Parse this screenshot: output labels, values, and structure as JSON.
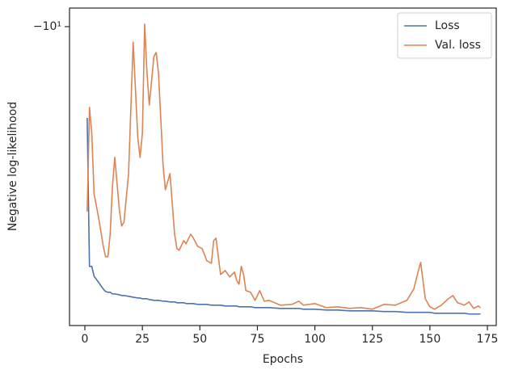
{
  "chart_data": {
    "type": "line",
    "xlabel": "Epochs",
    "ylabel": "Negative log-likelihood",
    "yscale": "symlog",
    "x": [
      1,
      2,
      3,
      4,
      6,
      8,
      9,
      10,
      11,
      12,
      13,
      15,
      16,
      17,
      19,
      21,
      23,
      24,
      25,
      26,
      27,
      28,
      30,
      31,
      32,
      34,
      35,
      37,
      39,
      40,
      41,
      43,
      44,
      46,
      47,
      49,
      51,
      53,
      55,
      56,
      57,
      59,
      61,
      63,
      65,
      66,
      67,
      68,
      69,
      70,
      72,
      74,
      76,
      78,
      80,
      85,
      90,
      93,
      95,
      100,
      105,
      110,
      115,
      120,
      125,
      130,
      135,
      140,
      143,
      145,
      146,
      148,
      150,
      152,
      155,
      158,
      160,
      162,
      165,
      167,
      169,
      171,
      172
    ],
    "series": [
      {
        "name": "Loss",
        "color": "#4c72b0",
        "values": [
          -15.07,
          -29.37,
          -29.37,
          -30.68,
          -31.57,
          -32.51,
          -32.87,
          -32.98,
          -32.98,
          -33.23,
          -33.23,
          -33.35,
          -33.47,
          -33.47,
          -33.59,
          -33.72,
          -33.84,
          -33.84,
          -33.96,
          -33.96,
          -33.96,
          -34.08,
          -34.2,
          -34.2,
          -34.2,
          -34.33,
          -34.33,
          -34.45,
          -34.45,
          -34.57,
          -34.57,
          -34.57,
          -34.7,
          -34.7,
          -34.7,
          -34.83,
          -34.83,
          -34.83,
          -34.95,
          -34.95,
          -34.95,
          -34.95,
          -35.08,
          -35.08,
          -35.08,
          -35.08,
          -35.21,
          -35.21,
          -35.21,
          -35.21,
          -35.21,
          -35.34,
          -35.34,
          -35.34,
          -35.34,
          -35.46,
          -35.46,
          -35.46,
          -35.59,
          -35.59,
          -35.72,
          -35.72,
          -35.85,
          -35.85,
          -35.85,
          -35.97,
          -35.97,
          -36.1,
          -36.1,
          -36.1,
          -36.1,
          -36.1,
          -36.1,
          -36.24,
          -36.24,
          -36.24,
          -36.24,
          -36.24,
          -36.24,
          -36.37,
          -36.37,
          -36.37,
          -36.37
        ]
      },
      {
        "name": "Val. loss",
        "color": "#dd8452",
        "values": [
          -22.95,
          -14.37,
          -16.14,
          -21.19,
          -23.63,
          -26.82,
          -28.12,
          -28.12,
          -25.41,
          -20.43,
          -17.99,
          -22.79,
          -24.5,
          -24.06,
          -19.35,
          -10.72,
          -16.44,
          -17.99,
          -16.14,
          -9.89,
          -12.3,
          -14.22,
          -11.44,
          -11.23,
          -12.3,
          -18.66,
          -20.81,
          -19.35,
          -25.41,
          -27.11,
          -27.31,
          -26.15,
          -26.53,
          -25.41,
          -25.77,
          -26.82,
          -27.11,
          -28.63,
          -28.95,
          -26.15,
          -25.87,
          -30.46,
          -29.91,
          -30.79,
          -30.13,
          -31.24,
          -31.81,
          -29.37,
          -30.46,
          -32.74,
          -32.98,
          -34.2,
          -32.74,
          -34.33,
          -34.2,
          -34.95,
          -34.83,
          -34.33,
          -34.95,
          -34.7,
          -35.34,
          -35.21,
          -35.46,
          -35.34,
          -35.59,
          -34.83,
          -34.95,
          -34.2,
          -32.51,
          -29.91,
          -28.84,
          -33.96,
          -35.21,
          -35.59,
          -34.95,
          -33.96,
          -33.47,
          -34.57,
          -34.95,
          -34.45,
          -35.46,
          -35.08,
          -35.34
        ]
      }
    ],
    "xlim": [
      -6.68,
      178.85
    ],
    "xticks": [
      0,
      25,
      50,
      75,
      100,
      125,
      150,
      175
    ],
    "ylim": [
      -38.3,
      -9.2
    ],
    "yticks": [
      {
        "value": -10,
        "label": "−10¹"
      }
    ],
    "grid": false,
    "legend": "upper right"
  }
}
